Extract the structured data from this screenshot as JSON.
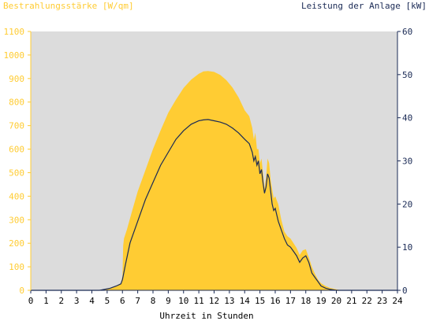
{
  "chart_data": {
    "type": "area",
    "title_left": "Bestrahlungsstärke [W/qm]",
    "title_right": "Leistung der Anlage [kW]",
    "xlabel": "Uhrzeit in Stunden",
    "x_ticks": [
      "0",
      "1",
      "2",
      "3",
      "4",
      "5",
      "6",
      "7",
      "8",
      "9",
      "10",
      "11",
      "12",
      "13",
      "14",
      "15",
      "16",
      "17",
      "18",
      "19",
      "20",
      "21",
      "22",
      "23",
      "24"
    ],
    "y_left_ticks": [
      "0",
      "100",
      "200",
      "300",
      "400",
      "500",
      "600",
      "700",
      "800",
      "900",
      "1000",
      "1100"
    ],
    "y_right_ticks": [
      "0",
      "10",
      "20",
      "30",
      "40",
      "50",
      "60"
    ],
    "xlim": [
      0,
      24
    ],
    "ylim_left": [
      0,
      1100
    ],
    "ylim_right": [
      0,
      60
    ],
    "grid": false,
    "series": [
      {
        "name": "Bestrahlungsstärke [W/qm]",
        "axis": "left",
        "color": "#FFCC33",
        "x": [
          0,
          4.5,
          5.2,
          5.6,
          5.9,
          6.0,
          6.05,
          6.1,
          6.3,
          6.6,
          7,
          7.5,
          8,
          8.5,
          9,
          9.5,
          10,
          10.5,
          11,
          11.3,
          11.6,
          12,
          12.4,
          12.8,
          13.2,
          13.6,
          14,
          14.3,
          14.5,
          14.6,
          14.7,
          14.8,
          14.9,
          15.0,
          15.1,
          15.2,
          15.3,
          15.4,
          15.5,
          15.6,
          15.7,
          15.8,
          15.9,
          16.0,
          16.2,
          16.4,
          16.6,
          16.8,
          17.0,
          17.2,
          17.4,
          17.6,
          17.8,
          18.0,
          18.2,
          18.4,
          18.6,
          18.8,
          19.0,
          19.3,
          19.6,
          20.0,
          20.3,
          24
        ],
        "y": [
          0,
          0,
          10,
          20,
          30,
          60,
          190,
          220,
          260,
          330,
          420,
          510,
          600,
          680,
          755,
          810,
          860,
          895,
          920,
          930,
          932,
          928,
          915,
          893,
          862,
          820,
          765,
          740,
          690,
          640,
          670,
          600,
          600,
          540,
          560,
          500,
          430,
          480,
          560,
          540,
          470,
          430,
          390,
          400,
          365,
          300,
          250,
          230,
          220,
          200,
          180,
          150,
          170,
          175,
          140,
          100,
          70,
          45,
          30,
          18,
          10,
          4,
          0,
          0
        ]
      },
      {
        "name": "Leistung der Anlage [kW]",
        "axis": "right",
        "color": "#1A2A55",
        "x": [
          0,
          4.5,
          5.2,
          5.6,
          5.9,
          6.0,
          6.2,
          6.5,
          7,
          7.5,
          8,
          8.5,
          9,
          9.5,
          10,
          10.5,
          11,
          11.3,
          11.6,
          12,
          12.4,
          12.8,
          13.2,
          13.6,
          14,
          14.3,
          14.5,
          14.6,
          14.7,
          14.8,
          14.9,
          15.0,
          15.1,
          15.2,
          15.3,
          15.4,
          15.5,
          15.6,
          15.7,
          15.8,
          15.9,
          16.0,
          16.2,
          16.4,
          16.6,
          16.8,
          17.0,
          17.2,
          17.4,
          17.6,
          17.8,
          18.0,
          18.2,
          18.4,
          18.6,
          18.8,
          19.0,
          19.3,
          19.6,
          20.0,
          20.3,
          24
        ],
        "y": [
          0,
          0,
          0.5,
          1,
          1.5,
          2.5,
          6,
          11,
          16,
          21,
          25,
          29,
          32,
          35,
          37,
          38.5,
          39.3,
          39.5,
          39.6,
          39.3,
          39,
          38.5,
          37.6,
          36.5,
          35,
          34,
          32,
          30,
          31,
          29,
          30,
          27,
          28,
          25,
          22.5,
          24,
          27,
          26,
          23,
          20,
          18.5,
          19,
          16,
          14,
          12,
          10.5,
          10,
          9,
          8,
          6.5,
          7.5,
          8,
          6.5,
          4,
          3,
          2,
          1,
          0.5,
          0.2,
          0,
          0,
          0
        ]
      }
    ]
  }
}
